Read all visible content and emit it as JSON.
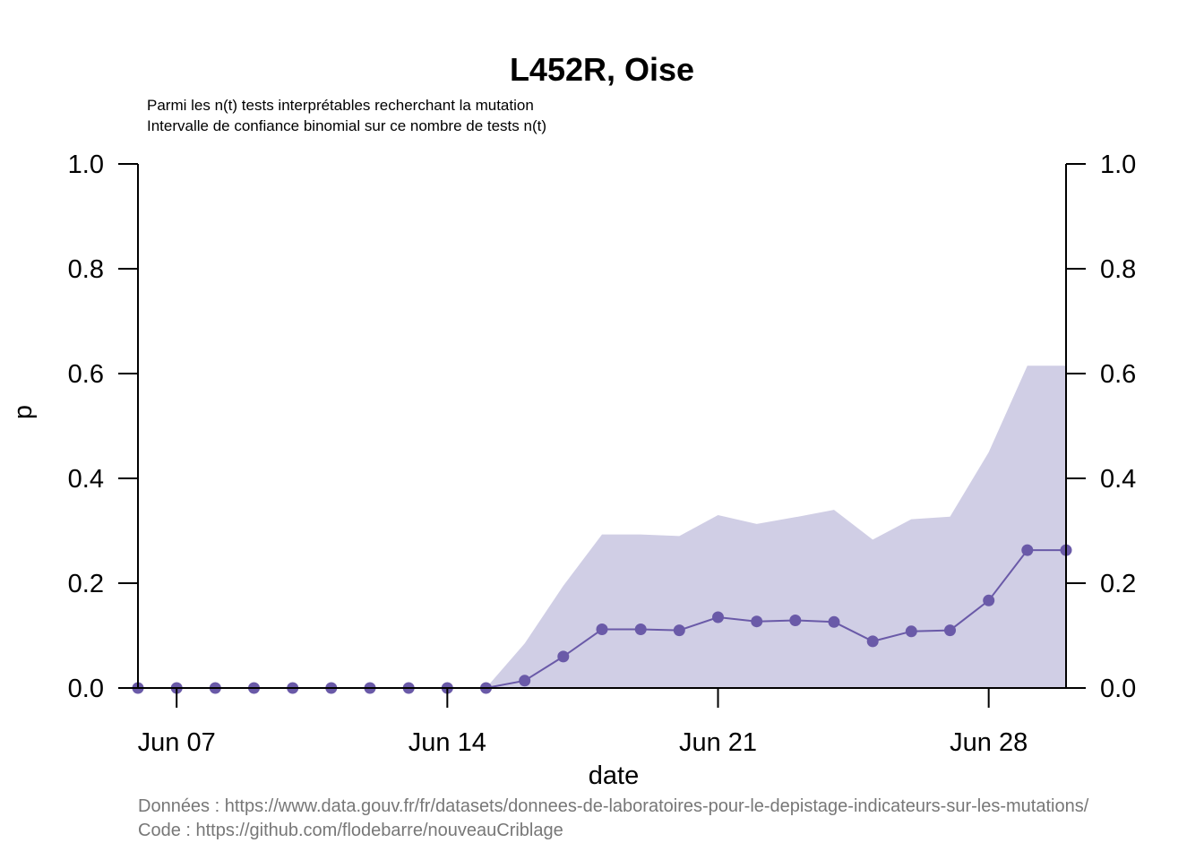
{
  "chart_data": {
    "type": "line",
    "title": "L452R, Oise",
    "subtitle_lines": [
      "Parmi les n(t) tests interprétables recherchant la mutation",
      "Intervalle de confiance binomial sur ce nombre de tests n(t)"
    ],
    "xlabel": "date",
    "ylabel": "p",
    "ylim": [
      0,
      1
    ],
    "y_ticks": [
      "0.0",
      "0.2",
      "0.4",
      "0.6",
      "0.8",
      "1.0"
    ],
    "x_ticks": [
      {
        "date": "2021-06-07",
        "label": "Jun 07"
      },
      {
        "date": "2021-06-14",
        "label": "Jun 14"
      },
      {
        "date": "2021-06-21",
        "label": "Jun 21"
      },
      {
        "date": "2021-06-28",
        "label": "Jun 28"
      }
    ],
    "xlim": [
      "2021-06-06",
      "2021-06-30"
    ],
    "series": [
      {
        "kind": "points_line",
        "x": [
          "2021-06-06",
          "2021-06-07",
          "2021-06-08",
          "2021-06-09",
          "2021-06-10",
          "2021-06-11",
          "2021-06-12",
          "2021-06-13",
          "2021-06-14",
          "2021-06-15",
          "2021-06-16",
          "2021-06-17",
          "2021-06-18",
          "2021-06-19",
          "2021-06-20",
          "2021-06-21",
          "2021-06-22",
          "2021-06-23",
          "2021-06-24",
          "2021-06-25",
          "2021-06-26",
          "2021-06-27",
          "2021-06-28",
          "2021-06-29",
          "2021-06-30"
        ],
        "y": [
          0,
          0,
          0,
          0,
          0,
          0,
          0,
          0,
          0,
          0,
          0.014,
          0.06,
          0.112,
          0.112,
          0.11,
          0.135,
          0.127,
          0.129,
          0.126,
          0.089,
          0.108,
          0.11,
          0.167,
          0.263,
          0.263
        ],
        "ci_upper": [
          0,
          0,
          0,
          0,
          0,
          0,
          0,
          0,
          0,
          0,
          0.085,
          0.195,
          0.293,
          0.293,
          0.29,
          0.33,
          0.313,
          0.326,
          0.34,
          0.283,
          0.322,
          0.327,
          0.45,
          0.615,
          0.615
        ],
        "ci_lower": [
          0,
          0,
          0,
          0,
          0,
          0,
          0,
          0,
          0,
          0,
          0,
          0,
          0,
          0,
          0,
          0,
          0,
          0,
          0,
          0,
          0,
          0,
          0,
          0,
          0
        ]
      }
    ],
    "colors": {
      "line": "#6a5aa8",
      "point": "#6a5aa8",
      "ci_fill": "#d0cee5",
      "axis": "#000000",
      "source_text": "#777777"
    },
    "grid": false,
    "secondary_y_axis": true
  },
  "footer": {
    "data_source": "Données : https://www.data.gouv.fr/fr/datasets/donnees-de-laboratoires-pour-le-depistage-indicateurs-sur-les-mutations/",
    "code_source": "Code : https://github.com/flodebarre/nouveauCriblage"
  }
}
